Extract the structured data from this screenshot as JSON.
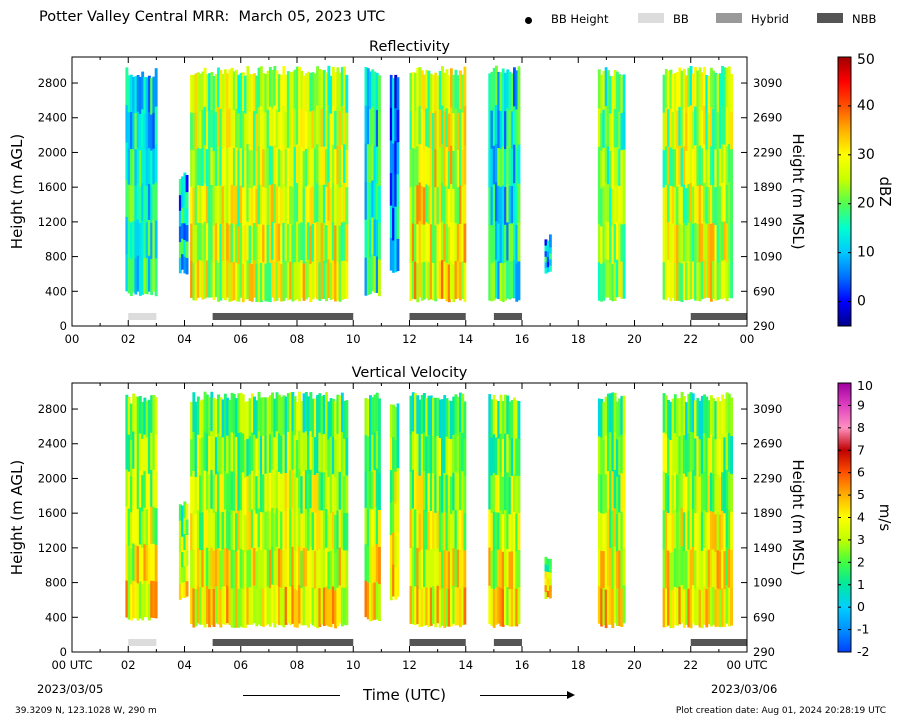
{
  "title": "Potter Valley Central MRR:  March 05, 2023 UTC",
  "legend": [
    {
      "label": "BB Height",
      "kind": "dot",
      "color": "#000000"
    },
    {
      "label": "BB",
      "kind": "swatch",
      "color": "#dcdcdc"
    },
    {
      "label": "Hybrid",
      "kind": "swatch",
      "color": "#999999"
    },
    {
      "label": "NBB",
      "kind": "swatch",
      "color": "#555555"
    }
  ],
  "x_axis_label": "Time (UTC)",
  "x_start_label": "2023/03/05",
  "x_end_label": "2023/03/06",
  "footer_left": "39.3209 N, 123.1028 W, 290 m",
  "footer_right": "Plot creation date: Aug 01, 2024 20:28:19 UTC",
  "chart_data": [
    {
      "type": "heatmap",
      "title": "Reflectivity",
      "ylabel": "Height (m AGL)",
      "ylabel_right": "Height (m MSL)",
      "xlim": [
        0,
        24
      ],
      "ylim": [
        0,
        3100
      ],
      "x_ticks": [
        "00",
        "02",
        "04",
        "06",
        "08",
        "10",
        "12",
        "14",
        "16",
        "18",
        "20",
        "22",
        "00"
      ],
      "y_ticks": [
        0,
        400,
        800,
        1200,
        1600,
        2000,
        2400,
        2800
      ],
      "y_ticks_right": [
        290,
        690,
        1090,
        1490,
        1890,
        2290,
        2690,
        3090
      ],
      "colorbar": {
        "label": "dBZ",
        "range": [
          -5,
          50
        ],
        "ticks": [
          0,
          10,
          20,
          30,
          40,
          50
        ],
        "colors": [
          "#00008b",
          "#0000ff",
          "#0070ff",
          "#00c8ff",
          "#00ffd0",
          "#50ff50",
          "#c8ff00",
          "#ffff00",
          "#ffb000",
          "#ff5000",
          "#ff0000",
          "#a00000"
        ]
      },
      "echo_periods": [
        {
          "start": 1.9,
          "end": 3.0,
          "top": 2980,
          "base": 350,
          "intensity": 0.3
        },
        {
          "start": 3.8,
          "end": 4.1,
          "top": 1800,
          "base": 600,
          "intensity": 0.25
        },
        {
          "start": 4.2,
          "end": 9.8,
          "top": 3000,
          "base": 280,
          "intensity": 0.5
        },
        {
          "start": 10.4,
          "end": 10.9,
          "top": 3000,
          "base": 350,
          "intensity": 0.3
        },
        {
          "start": 11.3,
          "end": 11.6,
          "top": 2900,
          "base": 600,
          "intensity": 0.2
        },
        {
          "start": 12.0,
          "end": 14.0,
          "top": 3000,
          "base": 280,
          "intensity": 0.55
        },
        {
          "start": 14.8,
          "end": 15.9,
          "top": 3000,
          "base": 280,
          "intensity": 0.3
        },
        {
          "start": 16.8,
          "end": 17.0,
          "top": 1100,
          "base": 600,
          "intensity": 0.2
        },
        {
          "start": 18.7,
          "end": 19.6,
          "top": 3000,
          "base": 280,
          "intensity": 0.45
        },
        {
          "start": 21.0,
          "end": 23.4,
          "top": 3000,
          "base": 280,
          "intensity": 0.5
        }
      ],
      "bright_band": [
        {
          "start": 2.0,
          "end": 3.0,
          "type": "BB"
        },
        {
          "start": 5.0,
          "end": 10.0,
          "type": "NBB"
        },
        {
          "start": 12.0,
          "end": 14.0,
          "type": "NBB"
        },
        {
          "start": 15.0,
          "end": 16.0,
          "type": "NBB"
        },
        {
          "start": 22.0,
          "end": 24.0,
          "type": "NBB"
        }
      ]
    },
    {
      "type": "heatmap",
      "title": "Vertical Velocity",
      "ylabel": "Height (m AGL)",
      "ylabel_right": "Height (m MSL)",
      "xlim": [
        0,
        24
      ],
      "ylim": [
        0,
        3100
      ],
      "x_ticks": [
        "00 UTC",
        "02",
        "04",
        "06",
        "08",
        "10",
        "12",
        "14",
        "16",
        "18",
        "20",
        "22",
        "00 UTC"
      ],
      "y_ticks": [
        0,
        400,
        800,
        1200,
        1600,
        2000,
        2400,
        2800
      ],
      "y_ticks_right": [
        290,
        690,
        1090,
        1490,
        1890,
        2290,
        2690,
        3090
      ],
      "colorbar": {
        "label": "m/s",
        "range": [
          -2,
          10
        ],
        "ticks": [
          -2,
          -1,
          0,
          1,
          2,
          3,
          4,
          5,
          6,
          7,
          8,
          9,
          10
        ],
        "colors": [
          "#0040ff",
          "#0090ff",
          "#00d0ff",
          "#00e8a0",
          "#40ff40",
          "#c0ff00",
          "#ffff00",
          "#ffb000",
          "#ff5000",
          "#c00000",
          "#ff90c0",
          "#e040c0",
          "#a000a0"
        ]
      },
      "echo_periods": [
        {
          "start": 1.9,
          "end": 3.0,
          "top": 2980,
          "base": 350,
          "intensity": 0.35
        },
        {
          "start": 3.8,
          "end": 4.1,
          "top": 1800,
          "base": 600,
          "intensity": 0.3
        },
        {
          "start": 4.2,
          "end": 9.8,
          "top": 3000,
          "base": 280,
          "intensity": 0.3
        },
        {
          "start": 10.4,
          "end": 10.9,
          "top": 3000,
          "base": 350,
          "intensity": 0.3
        },
        {
          "start": 11.3,
          "end": 11.6,
          "top": 2900,
          "base": 600,
          "intensity": 0.3
        },
        {
          "start": 12.0,
          "end": 14.0,
          "top": 3000,
          "base": 280,
          "intensity": 0.35
        },
        {
          "start": 14.8,
          "end": 15.9,
          "top": 3000,
          "base": 280,
          "intensity": 0.35
        },
        {
          "start": 16.8,
          "end": 17.0,
          "top": 1100,
          "base": 600,
          "intensity": 0.3
        },
        {
          "start": 18.7,
          "end": 19.6,
          "top": 3000,
          "base": 280,
          "intensity": 0.35
        },
        {
          "start": 21.0,
          "end": 23.4,
          "top": 3000,
          "base": 280,
          "intensity": 0.4
        }
      ],
      "bright_band": [
        {
          "start": 2.0,
          "end": 3.0,
          "type": "BB"
        },
        {
          "start": 5.0,
          "end": 10.0,
          "type": "NBB"
        },
        {
          "start": 12.0,
          "end": 14.0,
          "type": "NBB"
        },
        {
          "start": 15.0,
          "end": 16.0,
          "type": "NBB"
        },
        {
          "start": 22.0,
          "end": 24.0,
          "type": "NBB"
        }
      ]
    }
  ]
}
